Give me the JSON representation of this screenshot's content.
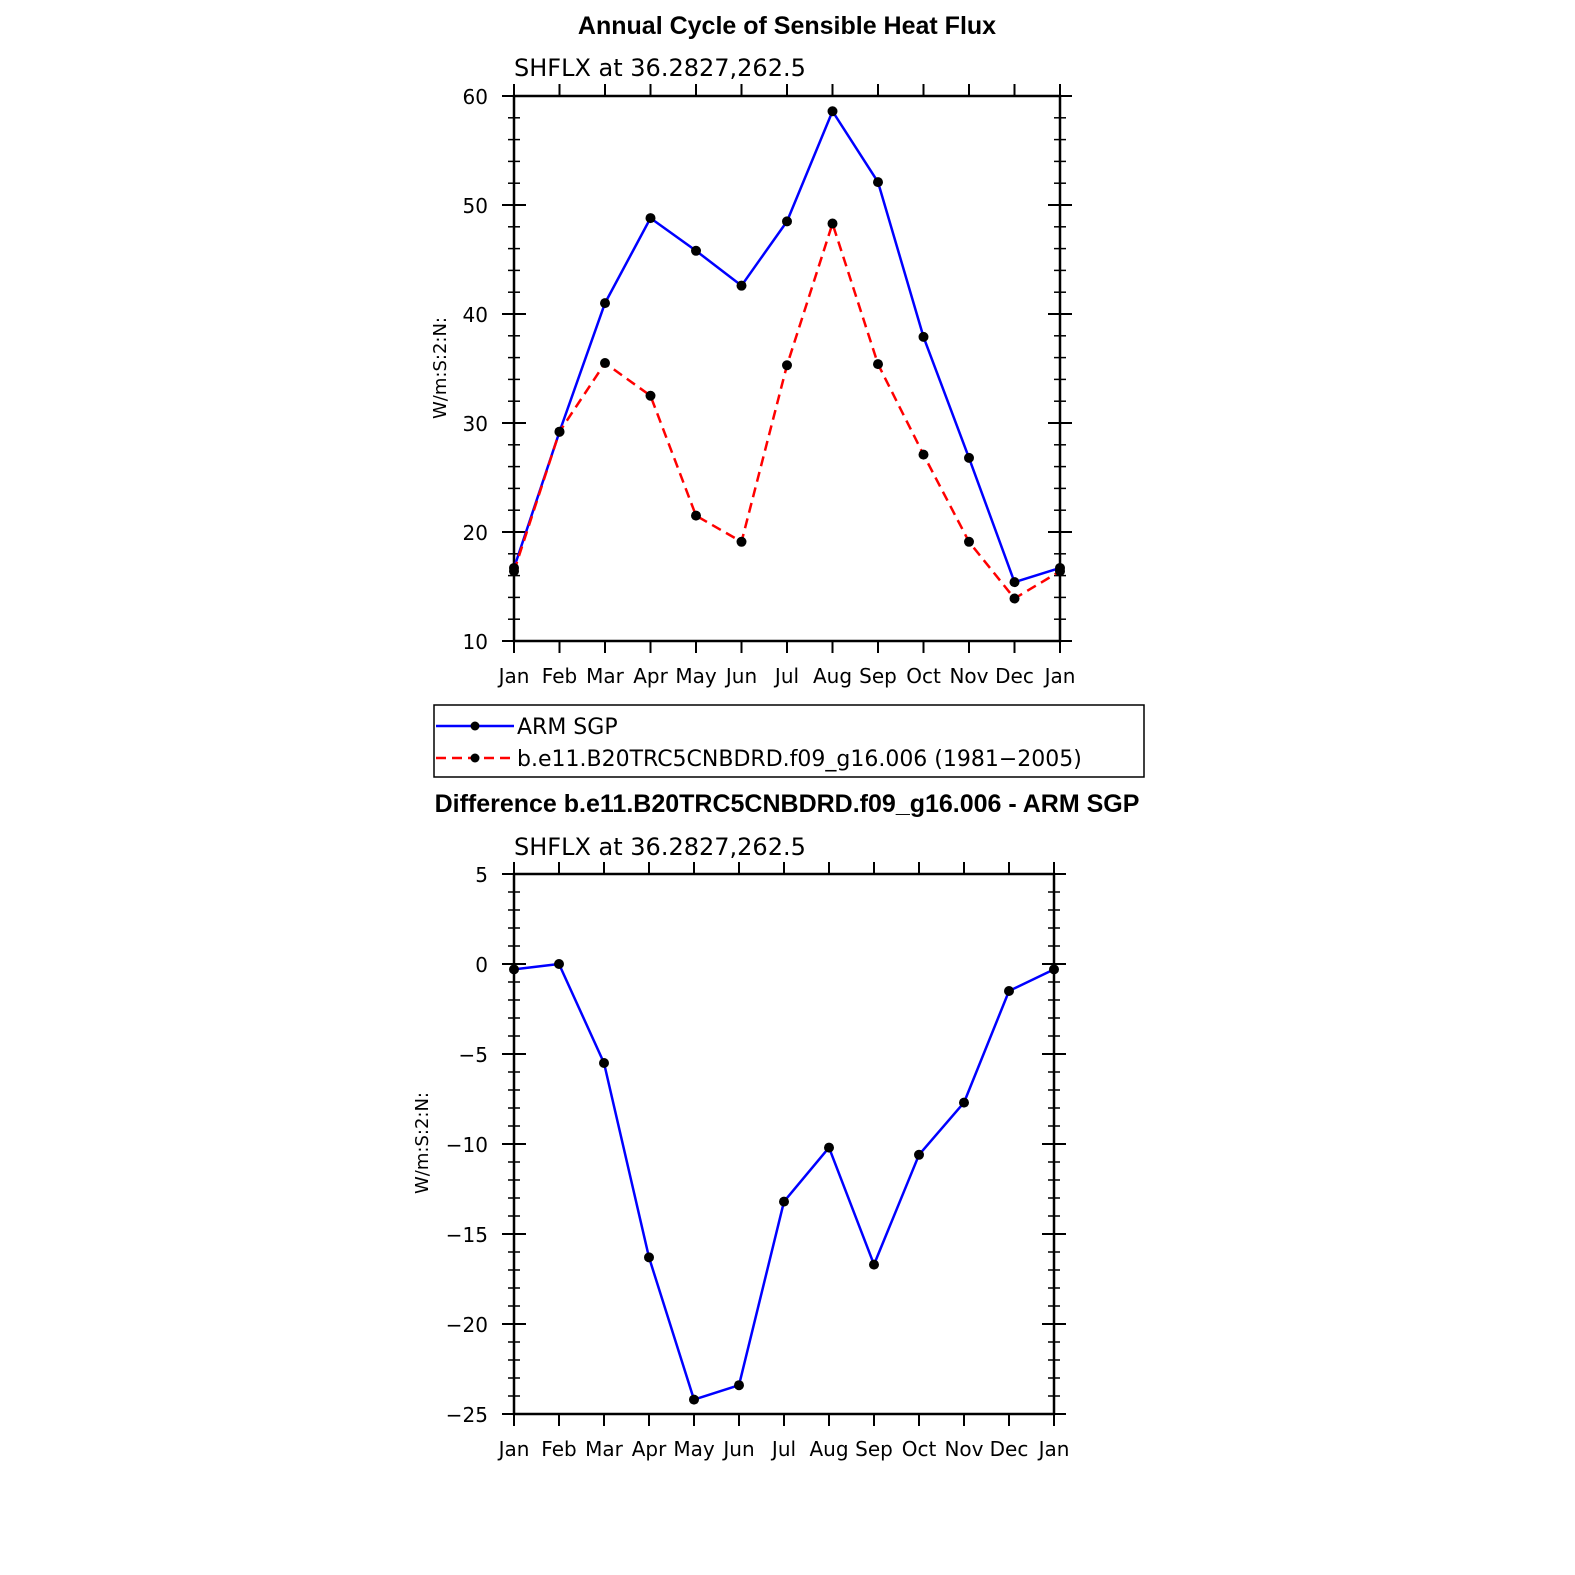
{
  "chart_data": [
    {
      "type": "line",
      "title": "Annual Cycle of Sensible Heat Flux",
      "subtitle": "SHFLX at 36.2827,262.5",
      "xlabel": "",
      "ylabel": "W/m:S:2:N:",
      "categories": [
        "Jan",
        "Feb",
        "Mar",
        "Apr",
        "May",
        "Jun",
        "Jul",
        "Aug",
        "Sep",
        "Oct",
        "Nov",
        "Dec",
        "Jan"
      ],
      "ylim": [
        10,
        60
      ],
      "yticks": [
        10,
        20,
        30,
        40,
        50,
        60
      ],
      "grid": false,
      "legend": "below",
      "series": [
        {
          "name": "ARM SGP",
          "color": "#0000ff",
          "dash": "solid",
          "values": [
            16.7,
            29.2,
            41.0,
            48.8,
            45.8,
            42.6,
            48.5,
            58.6,
            52.1,
            37.9,
            26.8,
            15.4,
            16.7
          ]
        },
        {
          "name": "b.e11.B20TRC5CNBDRD.f09_g16.006 (1981−2005)",
          "color": "#ff0000",
          "dash": "dashed",
          "values": [
            16.4,
            29.2,
            35.5,
            32.5,
            21.5,
            19.1,
            35.3,
            48.3,
            35.4,
            27.1,
            19.1,
            13.9,
            16.4
          ]
        }
      ]
    },
    {
      "type": "line",
      "title": "Difference b.e11.B20TRC5CNBDRD.f09_g16.006 - ARM SGP",
      "subtitle": "SHFLX at 36.2827,262.5",
      "xlabel": "",
      "ylabel": "W/m:S:2:N:",
      "categories": [
        "Jan",
        "Feb",
        "Mar",
        "Apr",
        "May",
        "Jun",
        "Jul",
        "Aug",
        "Sep",
        "Oct",
        "Nov",
        "Dec",
        "Jan"
      ],
      "ylim": [
        -25,
        5
      ],
      "yticks": [
        -25,
        -20,
        -15,
        -10,
        -5,
        0,
        5
      ],
      "ytick_labels": [
        "−25",
        "−20",
        "−15",
        "−10",
        "−5",
        "0",
        "5"
      ],
      "grid": false,
      "legend": "none",
      "series": [
        {
          "color": "#0000ff",
          "dash": "solid",
          "values": [
            -0.3,
            0.0,
            -5.5,
            -16.3,
            -24.2,
            -23.4,
            -13.2,
            -10.2,
            -16.7,
            -10.6,
            -7.7,
            -1.5,
            -0.3
          ]
        }
      ]
    }
  ]
}
